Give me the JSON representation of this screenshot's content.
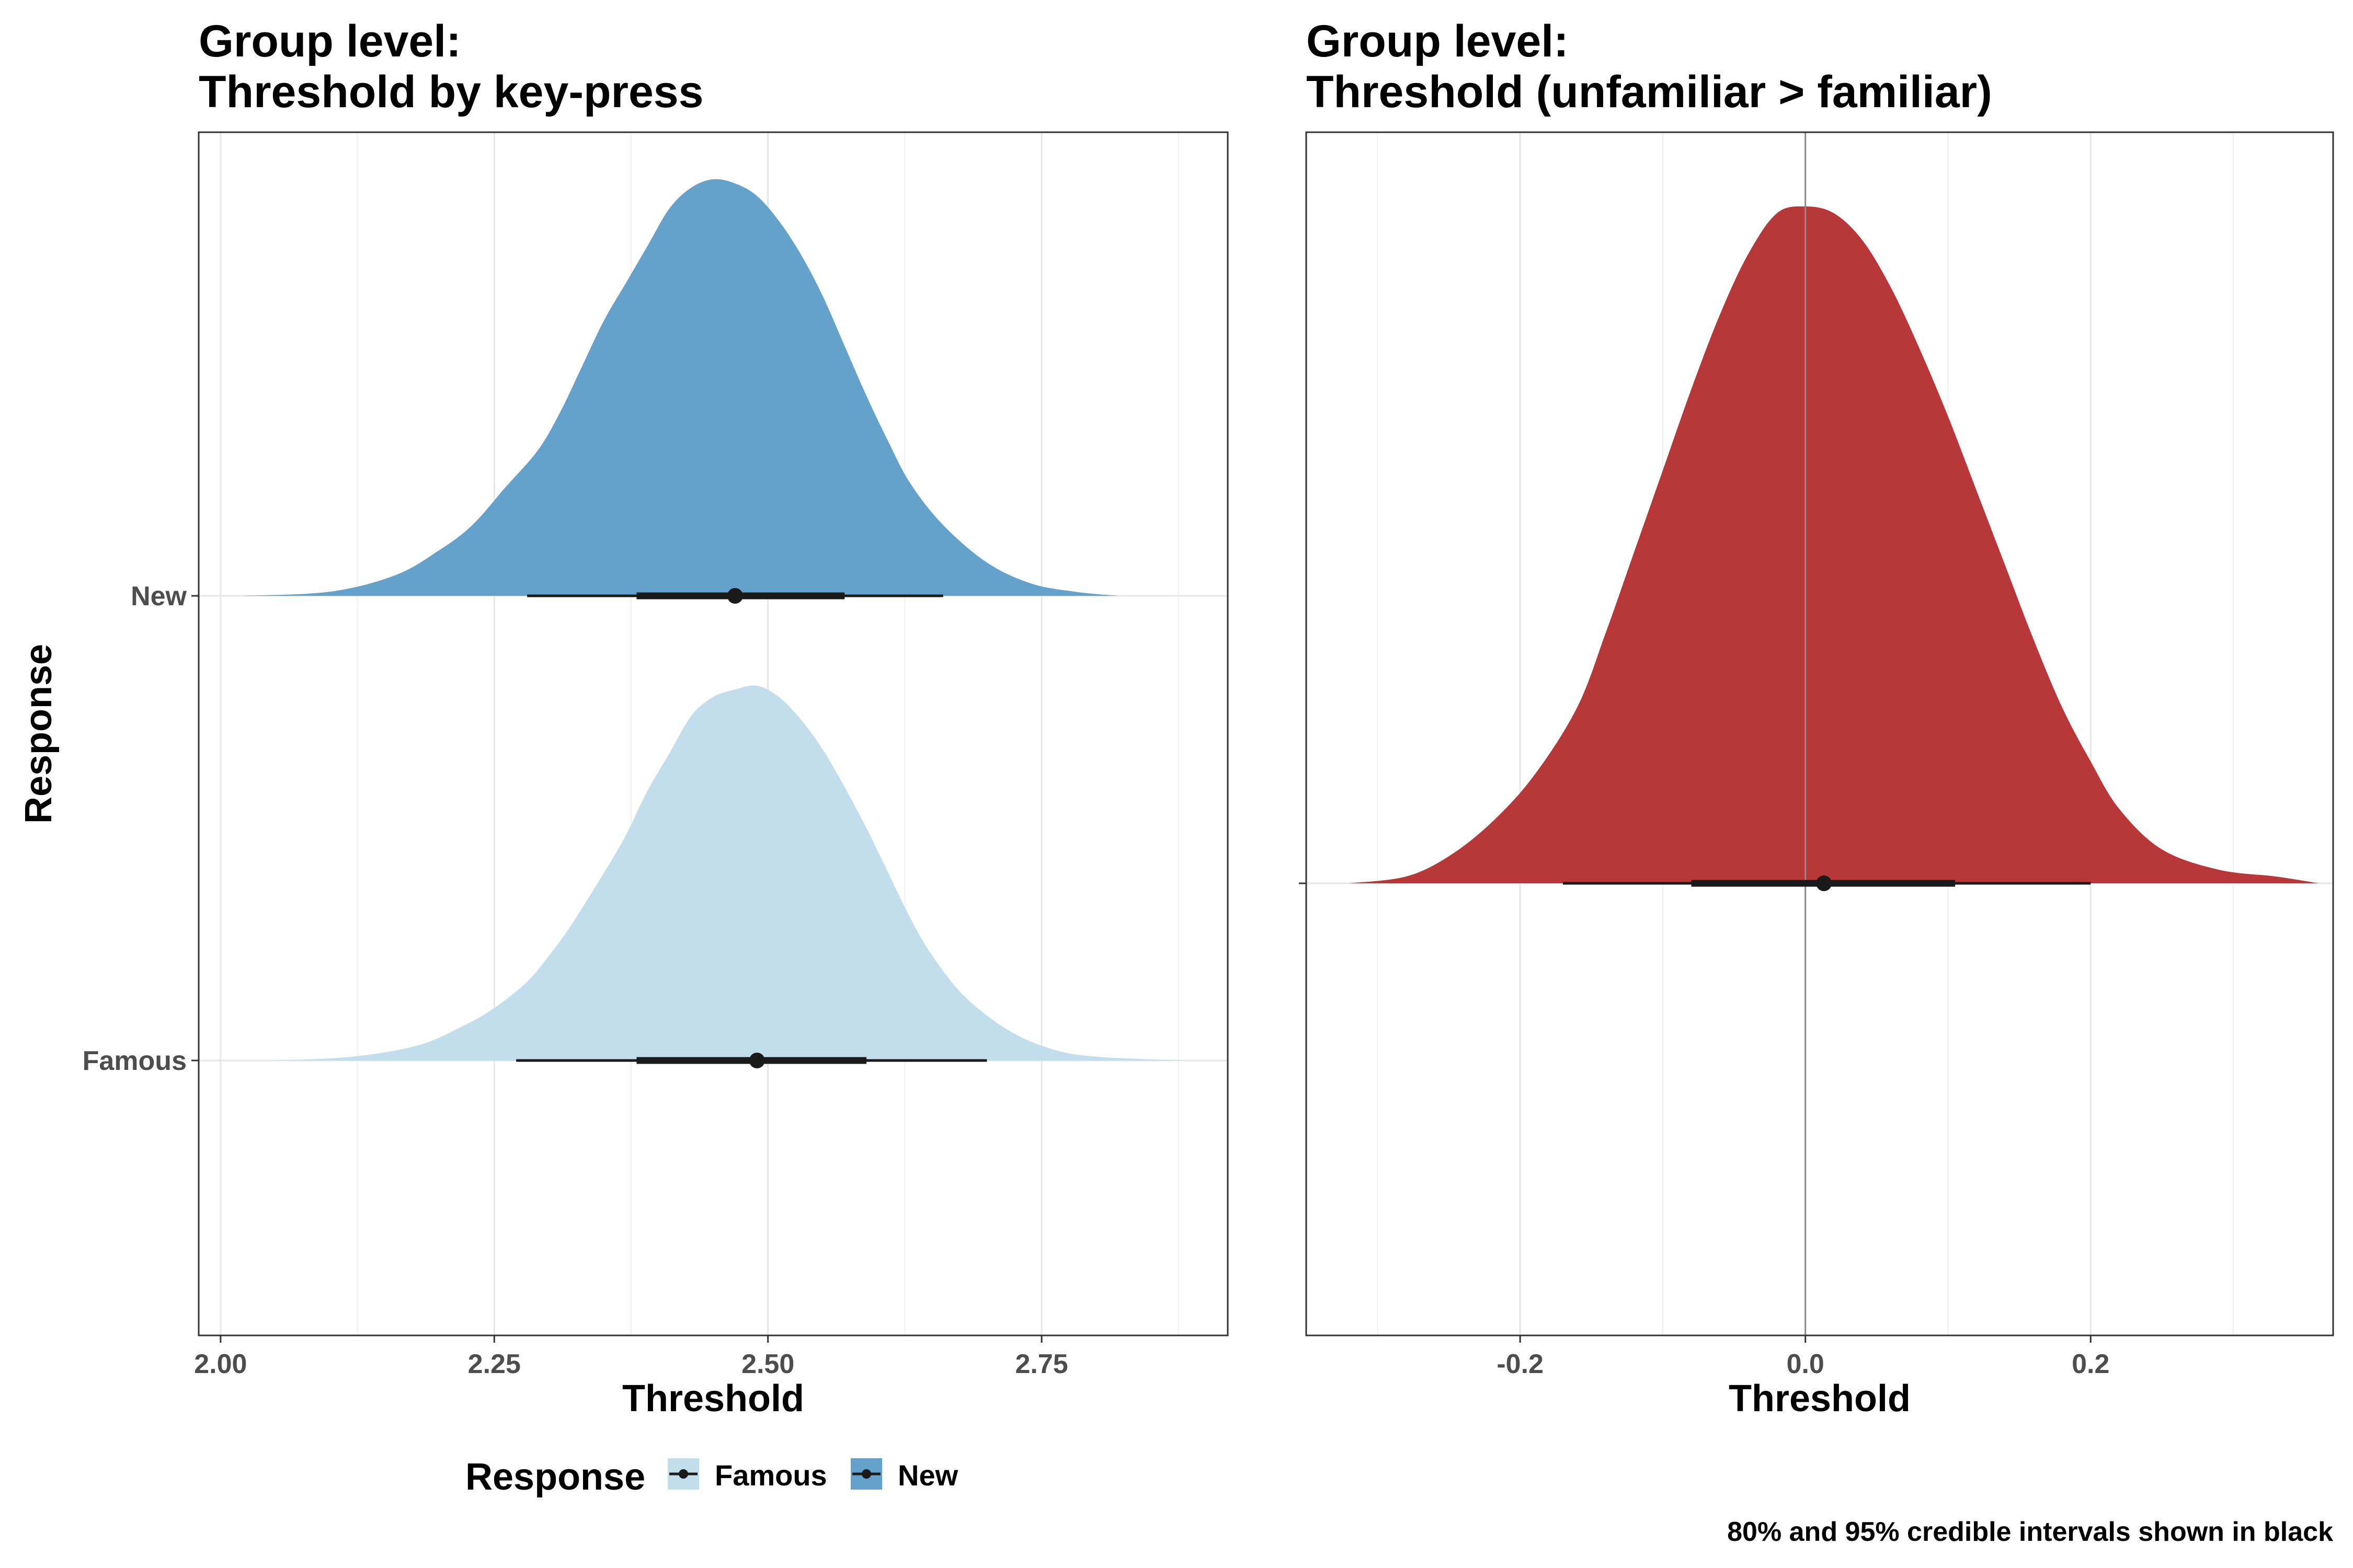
{
  "chart_data": [
    {
      "type": "area",
      "subtype": "density",
      "title_line1": "Group level:",
      "title_line2": "Threshold by key-press",
      "xlabel": "Threshold",
      "ylabel": "Response",
      "xlim": [
        1.98,
        2.92
      ],
      "xticks": [
        2.0,
        2.25,
        2.5,
        2.75
      ],
      "xtick_labels": [
        "2.00",
        "2.25",
        "2.50",
        "2.75"
      ],
      "categories": [
        "Famous",
        "New"
      ],
      "grid": true,
      "legend": {
        "title": "Response",
        "position": "bottom",
        "entries": [
          {
            "label": "Famous",
            "color": "#c2deec"
          },
          {
            "label": "New",
            "color": "#64a2cc"
          }
        ]
      },
      "series": [
        {
          "name": "New",
          "color": "#64a2cc",
          "x": [
            2.02,
            2.1,
            2.16,
            2.2,
            2.23,
            2.26,
            2.29,
            2.31,
            2.33,
            2.35,
            2.37,
            2.39,
            2.41,
            2.43,
            2.45,
            2.47,
            2.49,
            2.51,
            2.53,
            2.55,
            2.57,
            2.59,
            2.61,
            2.63,
            2.66,
            2.7,
            2.74,
            2.78,
            2.82
          ],
          "density": [
            0.0,
            0.01,
            0.05,
            0.11,
            0.17,
            0.26,
            0.35,
            0.44,
            0.55,
            0.66,
            0.75,
            0.84,
            0.93,
            0.98,
            1.0,
            0.99,
            0.96,
            0.9,
            0.82,
            0.72,
            0.6,
            0.48,
            0.37,
            0.27,
            0.17,
            0.08,
            0.03,
            0.01,
            0.0
          ],
          "point": 2.47,
          "interval_80": [
            2.38,
            2.57
          ],
          "interval_95": [
            2.28,
            2.66
          ]
        },
        {
          "name": "Famous",
          "color": "#c2deec",
          "x": [
            2.05,
            2.12,
            2.18,
            2.22,
            2.25,
            2.28,
            2.3,
            2.32,
            2.35,
            2.37,
            2.39,
            2.41,
            2.43,
            2.45,
            2.47,
            2.49,
            2.51,
            2.53,
            2.55,
            2.57,
            2.59,
            2.61,
            2.63,
            2.65,
            2.68,
            2.72,
            2.76,
            2.8,
            2.88
          ],
          "density": [
            0.0,
            0.01,
            0.04,
            0.09,
            0.14,
            0.21,
            0.28,
            0.36,
            0.5,
            0.6,
            0.72,
            0.82,
            0.92,
            0.97,
            0.99,
            1.0,
            0.97,
            0.91,
            0.83,
            0.73,
            0.62,
            0.5,
            0.38,
            0.28,
            0.17,
            0.08,
            0.03,
            0.01,
            0.0
          ],
          "point": 2.49,
          "interval_80": [
            2.38,
            2.59
          ],
          "interval_95": [
            2.27,
            2.7
          ]
        }
      ]
    },
    {
      "type": "area",
      "subtype": "density",
      "title_line1": "Group level:",
      "title_line2": "Threshold (unfamiliar > familiar)",
      "xlabel": "Threshold",
      "xlim": [
        -0.35,
        0.37
      ],
      "xticks": [
        -0.2,
        0.0,
        0.2
      ],
      "xtick_labels": [
        "-0.2",
        "0.0",
        "0.2"
      ],
      "reference_line_x": 0.0,
      "grid": true,
      "series": [
        {
          "color": "#b8383a",
          "x": [
            -0.32,
            -0.28,
            -0.25,
            -0.22,
            -0.19,
            -0.16,
            -0.14,
            -0.12,
            -0.1,
            -0.08,
            -0.06,
            -0.04,
            -0.02,
            0.0,
            0.02,
            0.04,
            0.06,
            0.08,
            0.1,
            0.12,
            0.14,
            0.16,
            0.18,
            0.2,
            0.22,
            0.25,
            0.29,
            0.33,
            0.36
          ],
          "density": [
            0.0,
            0.01,
            0.04,
            0.09,
            0.16,
            0.26,
            0.37,
            0.49,
            0.61,
            0.73,
            0.84,
            0.93,
            0.99,
            1.0,
            0.99,
            0.95,
            0.88,
            0.79,
            0.69,
            0.58,
            0.47,
            0.36,
            0.26,
            0.18,
            0.11,
            0.05,
            0.02,
            0.01,
            0.0
          ],
          "point": 0.013,
          "interval_80": [
            -0.08,
            0.105
          ],
          "interval_95": [
            -0.17,
            0.2
          ]
        }
      ]
    }
  ],
  "caption": "80% and 95% credible intervals shown in black"
}
